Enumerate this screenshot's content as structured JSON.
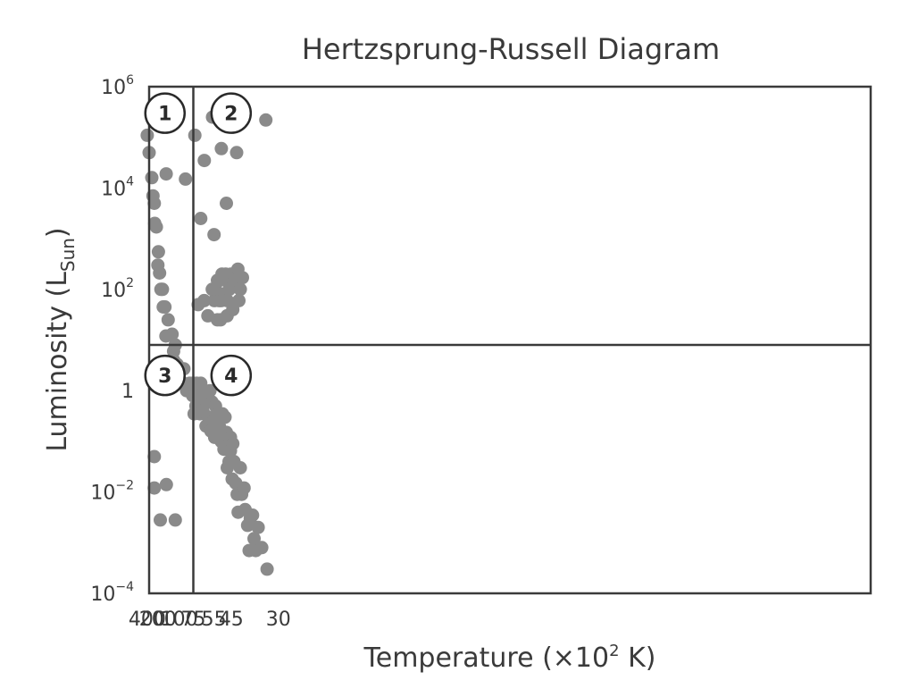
{
  "chart_data": {
    "type": "scatter",
    "title": "Hertzsprung-Russell Diagram",
    "xlabel": {
      "main": "Temperature (",
      "mult": "×10",
      "exp": "2",
      "unit": " K)"
    },
    "ylabel": {
      "main": "Luminosity (L",
      "sub": "Sun",
      "close": ")"
    },
    "x_scale": "reciprocal",
    "x_ticks": [
      400,
      200,
      100,
      75,
      55,
      45,
      30
    ],
    "y_scale": "log",
    "y_ticks": [
      {
        "value": 1000000,
        "base": "10",
        "exp": "6"
      },
      {
        "value": 10000,
        "base": "10",
        "exp": "4"
      },
      {
        "value": 100,
        "base": "10",
        "exp": "2"
      },
      {
        "value": 1,
        "base": "1",
        "exp": ""
      },
      {
        "value": 0.01,
        "base": "10",
        "exp": "−2"
      },
      {
        "value": 0.0001,
        "base": "10",
        "exp": "−4"
      }
    ],
    "ylim": [
      0.0001,
      1000000
    ],
    "dividers": {
      "x": 75,
      "y": 8
    },
    "quadrants": [
      {
        "label": "1",
        "x": 150,
        "y": 300000
      },
      {
        "label": "2",
        "x": 45,
        "y": 300000
      },
      {
        "label": "3",
        "x": 150,
        "y": 2
      },
      {
        "label": "4",
        "x": 45,
        "y": 2
      }
    ],
    "point_color": "#8a8a8a",
    "frame_color": "#3a3a3a",
    "points": [
      [
        400,
        110000
      ],
      [
        340,
        50000
      ],
      [
        280,
        16000
      ],
      [
        260,
        7000
      ],
      [
        240,
        5000
      ],
      [
        235,
        2000
      ],
      [
        215,
        1700
      ],
      [
        195,
        550
      ],
      [
        200,
        300
      ],
      [
        185,
        210
      ],
      [
        175,
        100
      ],
      [
        165,
        100
      ],
      [
        160,
        45
      ],
      [
        150,
        45
      ],
      [
        145,
        12
      ],
      [
        135,
        25
      ],
      [
        120,
        13
      ],
      [
        115,
        6
      ],
      [
        110,
        8
      ],
      [
        115,
        4
      ],
      [
        105,
        3.3
      ],
      [
        95,
        1.5
      ],
      [
        90,
        2.7
      ],
      [
        85,
        1
      ],
      [
        80,
        1.4
      ],
      [
        75.8,
        0.8
      ],
      [
        76,
        1.4
      ],
      [
        144,
        19000
      ],
      [
        87,
        15000
      ],
      [
        240,
        0.05
      ],
      [
        240,
        0.012
      ],
      [
        180,
        0.0028
      ],
      [
        143,
        0.014
      ],
      [
        110,
        0.0028
      ],
      [
        73,
        110000
      ],
      [
        56,
        250000
      ],
      [
        50.2,
        60000
      ],
      [
        42.5,
        50000
      ],
      [
        32.9,
        220000
      ],
      [
        62.8,
        35000
      ],
      [
        66.3,
        2500
      ],
      [
        54.9,
        1200
      ],
      [
        47.4,
        5000
      ],
      [
        69.1,
        50
      ],
      [
        63,
        60
      ],
      [
        56.2,
        100
      ],
      [
        54.7,
        60
      ],
      [
        53.9,
        100
      ],
      [
        52.6,
        150
      ],
      [
        52.6,
        25
      ],
      [
        51.6,
        60
      ],
      [
        51.4,
        150
      ],
      [
        50.7,
        25
      ],
      [
        50.3,
        60
      ],
      [
        49.8,
        200
      ],
      [
        49.6,
        80
      ],
      [
        48.3,
        70
      ],
      [
        47.4,
        150
      ],
      [
        47.7,
        200
      ],
      [
        47.0,
        30
      ],
      [
        46.9,
        60
      ],
      [
        45.9,
        100
      ],
      [
        45.1,
        200
      ],
      [
        44.2,
        40
      ],
      [
        43.4,
        150
      ],
      [
        42.3,
        150
      ],
      [
        42.0,
        250
      ],
      [
        41.6,
        60
      ],
      [
        41.0,
        100
      ],
      [
        40.2,
        170
      ],
      [
        59.7,
        30
      ],
      [
        73,
        0.8
      ],
      [
        74,
        0.35
      ],
      [
        71.7,
        0.5
      ],
      [
        71.0,
        1.4
      ],
      [
        68.2,
        0.7
      ],
      [
        67.2,
        0.35
      ],
      [
        66.3,
        1.4
      ],
      [
        64.2,
        0.4
      ],
      [
        63.4,
        0.9
      ],
      [
        61.3,
        0.2
      ],
      [
        60.7,
        0.6
      ],
      [
        59.2,
        0.3
      ],
      [
        58.0,
        1.0
      ],
      [
        57.3,
        0.16
      ],
      [
        56.5,
        0.6
      ],
      [
        55.3,
        0.25
      ],
      [
        54.5,
        0.12
      ],
      [
        53.9,
        0.5
      ],
      [
        53.0,
        0.14
      ],
      [
        52.3,
        0.35
      ],
      [
        51.4,
        0.2
      ],
      [
        50.3,
        0.1
      ],
      [
        49.6,
        0.35
      ],
      [
        48.7,
        0.07
      ],
      [
        48.1,
        0.3
      ],
      [
        47.4,
        0.15
      ],
      [
        47.4,
        0.08
      ],
      [
        46.9,
        0.03
      ],
      [
        46.0,
        0.04
      ],
      [
        45.3,
        0.12
      ],
      [
        45.3,
        0.065
      ],
      [
        44.5,
        0.018
      ],
      [
        44.2,
        0.09
      ],
      [
        43.7,
        0.04
      ],
      [
        42.9,
        0.015
      ],
      [
        42.3,
        0.009
      ],
      [
        41.9,
        0.004
      ],
      [
        41.0,
        0.03
      ],
      [
        40.5,
        0.009
      ],
      [
        39.6,
        0.012
      ],
      [
        39.2,
        0.0045
      ],
      [
        38.3,
        0.0022
      ],
      [
        37.8,
        0.0007
      ],
      [
        37.4,
        0.003
      ],
      [
        36.7,
        0.0035
      ],
      [
        36.2,
        0.0012
      ],
      [
        35.7,
        0.0007
      ],
      [
        35.0,
        0.002
      ],
      [
        34.0,
        0.0008
      ],
      [
        32.6,
        0.0003
      ]
    ]
  }
}
